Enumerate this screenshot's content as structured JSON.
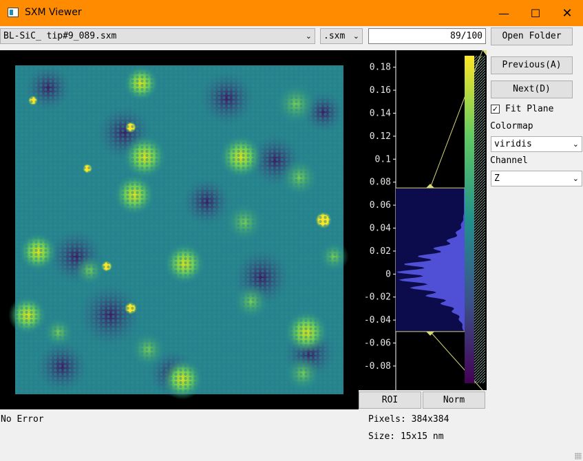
{
  "window": {
    "title": "SXM Viewer"
  },
  "toolbar": {
    "file": "BL-SiC_ tip#9_089.sxm",
    "ext": ".sxm",
    "counter": "89/100",
    "open_folder": "Open Folder"
  },
  "controls": {
    "previous": "Previous(A)",
    "next": "Next(D)",
    "fit_plane_label": "Fit Plane",
    "fit_plane_checked": true,
    "colormap_label": "Colormap",
    "colormap_value": "viridis",
    "channel_label": "Channel",
    "channel_value": "Z"
  },
  "histogram": {
    "ticks": [
      "0.18",
      "0.16",
      "0.14",
      "0.12",
      "0.1",
      "0.08",
      "0.06",
      "0.04",
      "0.02",
      "0",
      "-0.02",
      "-0.04",
      "-0.06",
      "-0.08"
    ],
    "ylim": [
      -0.095,
      0.19
    ],
    "region": [
      -0.05,
      0.075
    ],
    "colormap": "viridis"
  },
  "buttons": {
    "roi": "ROI",
    "norm": "Norm"
  },
  "status": {
    "error": "No Error",
    "pixels": "Pixels: 384x384",
    "size": "Size: 15x15 nm"
  },
  "colors": {
    "titlebar": "#ff8c00",
    "hist_fill": "#5050d6",
    "region": "#0c0c4d",
    "line": "#d9d97a"
  }
}
